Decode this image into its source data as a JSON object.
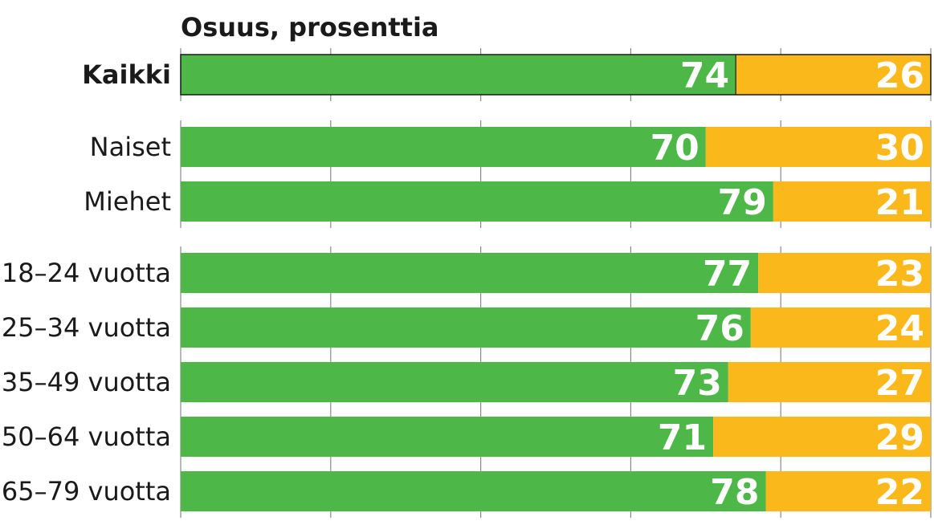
{
  "chart_data": {
    "type": "bar",
    "orientation": "horizontal",
    "stacked": true,
    "title": "Osuus, prosenttia",
    "xlim": [
      0,
      100
    ],
    "grid": true,
    "categories": [
      "Kaikki",
      "Naiset",
      "Miehet",
      "18–24 vuotta",
      "25–34 vuotta",
      "35–49 vuotta",
      "50–64 vuotta",
      "65–79 vuotta"
    ],
    "groups": [
      [
        0
      ],
      [
        1,
        2
      ],
      [
        3,
        4,
        5,
        6,
        7
      ]
    ],
    "highlight_category": "Kaikki",
    "series": [
      {
        "values": [
          74,
          70,
          79,
          77,
          76,
          73,
          71,
          78
        ],
        "color": "#4db748"
      },
      {
        "values": [
          26,
          30,
          21,
          23,
          24,
          27,
          29,
          22
        ],
        "color": "#fbb81a"
      }
    ]
  }
}
